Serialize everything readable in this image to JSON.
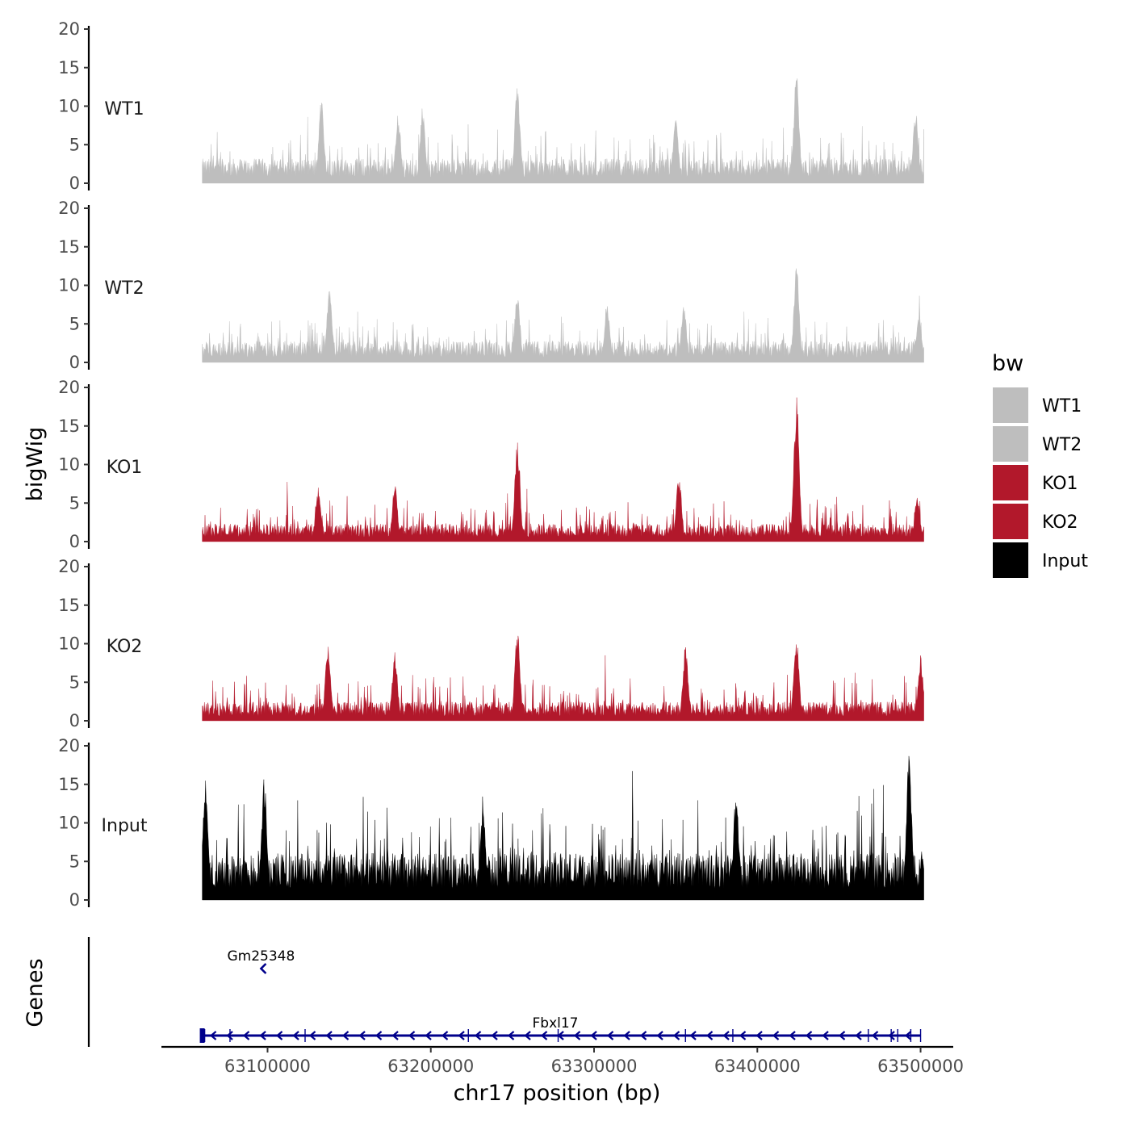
{
  "chart_data": {
    "type": "area",
    "y_axis_title": "bigWig",
    "x_axis_title": "chr17 position (bp)",
    "genes_axis_title": "Genes",
    "x_range": [
      63035000,
      63520000
    ],
    "data_range": [
      63060000,
      63502000
    ],
    "y_range": [
      0,
      20
    ],
    "y_ticks": [
      "0",
      "5",
      "10",
      "15",
      "20"
    ],
    "x_ticks": [
      {
        "value": 63100000,
        "label": "63100000"
      },
      {
        "value": 63200000,
        "label": "63200000"
      },
      {
        "value": 63300000,
        "label": "63300000"
      },
      {
        "value": 63400000,
        "label": "63400000"
      },
      {
        "value": 63500000,
        "label": "63500000"
      }
    ],
    "tracks": [
      {
        "name": "WT1",
        "color": "#bebebe",
        "base": 2.2,
        "noise": 2.6,
        "peaks": [
          [
            63133000,
            11
          ],
          [
            63180000,
            9
          ],
          [
            63195000,
            10
          ],
          [
            63253000,
            13
          ],
          [
            63350000,
            9
          ],
          [
            63424000,
            14.5
          ],
          [
            63497000,
            9.5
          ]
        ]
      },
      {
        "name": "WT2",
        "color": "#bebebe",
        "base": 1.9,
        "noise": 2.3,
        "peaks": [
          [
            63138000,
            10
          ],
          [
            63253000,
            9.5
          ],
          [
            63308000,
            8
          ],
          [
            63355000,
            7.5
          ],
          [
            63424000,
            13
          ],
          [
            63499000,
            6.5
          ]
        ]
      },
      {
        "name": "KO1",
        "color": "#b2182b",
        "base": 1.6,
        "noise": 2.2,
        "peaks": [
          [
            63131000,
            7
          ],
          [
            63178000,
            7.5
          ],
          [
            63253000,
            13
          ],
          [
            63352000,
            9
          ],
          [
            63424000,
            19
          ],
          [
            63498000,
            6
          ]
        ]
      },
      {
        "name": "KO2",
        "color": "#b2182b",
        "base": 1.7,
        "noise": 2.4,
        "peaks": [
          [
            63137000,
            10
          ],
          [
            63178000,
            9
          ],
          [
            63253000,
            12
          ],
          [
            63356000,
            10
          ],
          [
            63424000,
            11.5
          ],
          [
            63500000,
            8.5
          ]
        ]
      },
      {
        "name": "Input",
        "color": "#000000",
        "base": 4.2,
        "noise": 4.5,
        "peaks": [
          [
            63062000,
            16.5
          ],
          [
            63098000,
            16
          ],
          [
            63232000,
            12.5
          ],
          [
            63387000,
            14
          ],
          [
            63493000,
            19.5
          ],
          [
            63501000,
            6.5
          ]
        ]
      }
    ],
    "genes": [
      {
        "name": "Gm25348",
        "start": 63096500,
        "end": 63098500,
        "strand": "-",
        "row": 0,
        "color": "#00008b"
      },
      {
        "name": "Fbxl17",
        "start": 63060000,
        "end": 63500000,
        "strand": "-",
        "row": 1,
        "color": "#00008b",
        "exons": [
          63060000,
          63061500,
          63077000,
          63123000,
          63223000,
          63278000,
          63356000,
          63385000,
          63468000,
          63482000,
          63486000,
          63494000,
          63500000
        ]
      }
    ],
    "legend": {
      "title": "bw",
      "entries": [
        {
          "label": "WT1",
          "color": "#bebebe"
        },
        {
          "label": "WT2",
          "color": "#bebebe"
        },
        {
          "label": "KO1",
          "color": "#b2182b"
        },
        {
          "label": "KO2",
          "color": "#b2182b"
        },
        {
          "label": "Input",
          "color": "#000000"
        }
      ]
    }
  }
}
